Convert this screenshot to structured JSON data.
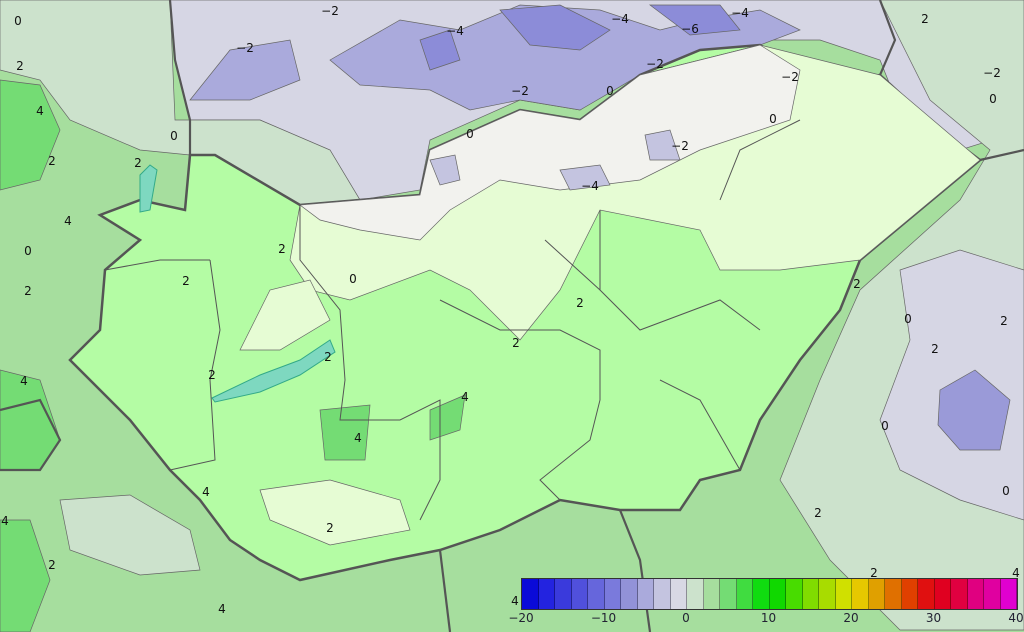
{
  "map": {
    "colors": {
      "lavender": "#d6d6e4",
      "blue_cold": "#aaaadc",
      "blue_colder": "#8c8cd8",
      "pale_green": "#cce2cc",
      "green": "#a6de9e",
      "mid_green": "#74dc74",
      "hungary_green": "#b4fca4",
      "hungary_light": "#e6fcd4",
      "near_white": "#f2f2ee",
      "border": "#555555"
    },
    "contour_labels": [
      "0",
      "2",
      "4",
      "2",
      "4",
      "0",
      "2",
      "0",
      "−2",
      "−2",
      "−4",
      "−6",
      "−4",
      "−2",
      "−4",
      "2",
      "−2",
      "0",
      "0",
      "−2",
      "0",
      "−2",
      "2",
      "2",
      "0",
      "2",
      "2",
      "2",
      "2",
      "0",
      "0",
      "2",
      "−2",
      "−4",
      "0",
      "0",
      "2",
      "2",
      "2",
      "4",
      "4",
      "2",
      "4",
      "4",
      "2",
      "4",
      "4",
      "4",
      "4",
      "2",
      "2"
    ]
  },
  "colorbar": {
    "ticks": [
      "−20",
      "−10",
      "0",
      "10",
      "20",
      "30",
      "40"
    ],
    "colors": [
      "#0a0ad8",
      "#2323e0",
      "#3a3adc",
      "#5050dc",
      "#6666dc",
      "#7a7adc",
      "#9292d8",
      "#aaaadc",
      "#c4c4e0",
      "#d8d8e4",
      "#cce2cc",
      "#a6de9e",
      "#74dc74",
      "#40dc40",
      "#10dc10",
      "#10d800",
      "#48dc00",
      "#80dc00",
      "#a8dc00",
      "#d0e000",
      "#e6c800",
      "#e0a000",
      "#e07000",
      "#e04000",
      "#e01010",
      "#e00020",
      "#e00040",
      "#e00080",
      "#e000a0",
      "#e000d0"
    ]
  }
}
